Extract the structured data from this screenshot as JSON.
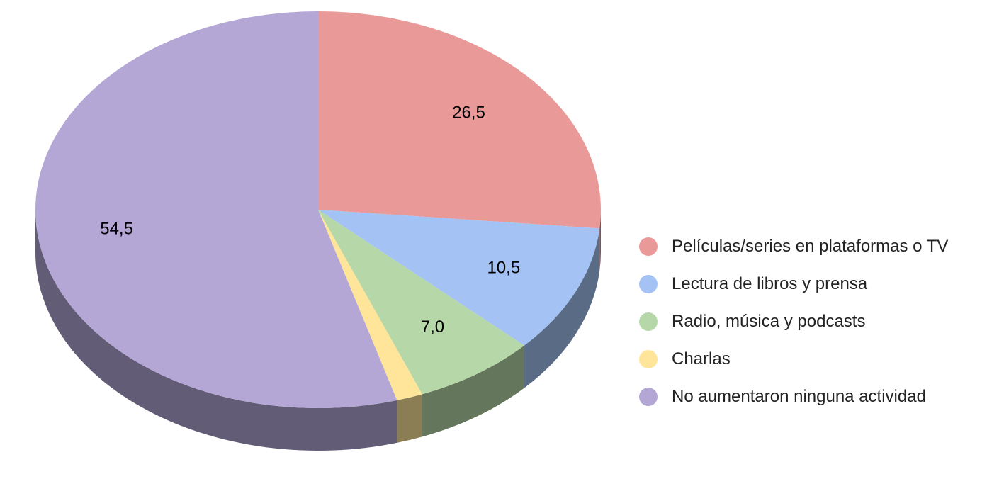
{
  "chart_data": {
    "type": "pie",
    "categories": [
      "Películas/series en plataformas o TV",
      "Lectura de libros y prensa",
      "Radio, música y podcasts",
      "Charlas",
      "No aumentaron ninguna actividad"
    ],
    "values": [
      26.5,
      10.5,
      7.0,
      1.5,
      54.5
    ],
    "value_labels": [
      "26,5",
      "10,5",
      "7,0",
      null,
      "54,5"
    ],
    "colors": [
      "#ea9999",
      "#a4c2f4",
      "#b6d7a8",
      "#ffe599",
      "#b4a7d6"
    ],
    "legend": "right"
  }
}
